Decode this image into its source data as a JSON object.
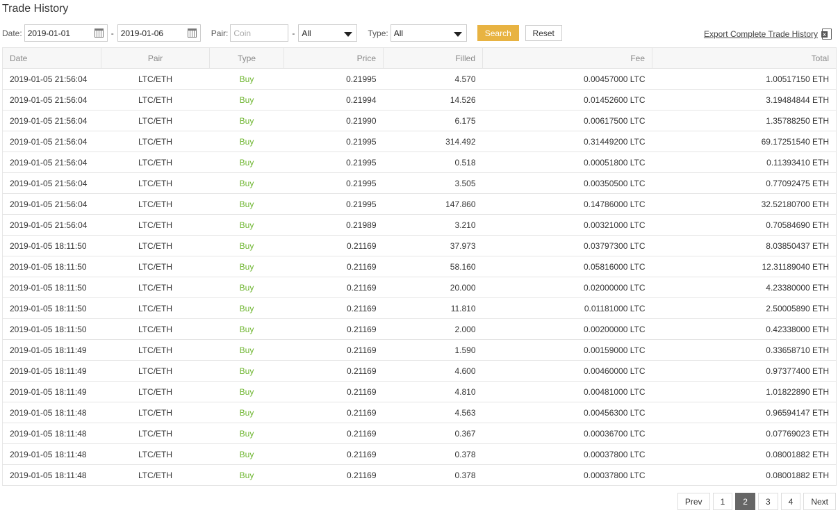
{
  "title": "Trade History",
  "filters": {
    "date_label": "Date:",
    "date_from": "2019-01-01",
    "date_to": "2019-01-06",
    "separator": "-",
    "pair_label": "Pair:",
    "pair_placeholder": "Coin",
    "pair_quote": "All",
    "type_label": "Type:",
    "type_value": "All",
    "search_label": "Search",
    "reset_label": "Reset"
  },
  "export_label": "Export Complete Trade History",
  "colors": {
    "accent": "#e8b342",
    "buy": "#6db52e",
    "active_page": "#666666"
  },
  "table": {
    "columns": [
      "Date",
      "Pair",
      "Type",
      "Price",
      "Filled",
      "Fee",
      "Total"
    ],
    "rows": [
      [
        "2019-01-05 21:56:04",
        "LTC/ETH",
        "Buy",
        "0.21995",
        "4.570",
        "0.00457000 LTC",
        "1.00517150 ETH"
      ],
      [
        "2019-01-05 21:56:04",
        "LTC/ETH",
        "Buy",
        "0.21994",
        "14.526",
        "0.01452600 LTC",
        "3.19484844 ETH"
      ],
      [
        "2019-01-05 21:56:04",
        "LTC/ETH",
        "Buy",
        "0.21990",
        "6.175",
        "0.00617500 LTC",
        "1.35788250 ETH"
      ],
      [
        "2019-01-05 21:56:04",
        "LTC/ETH",
        "Buy",
        "0.21995",
        "314.492",
        "0.31449200 LTC",
        "69.17251540 ETH"
      ],
      [
        "2019-01-05 21:56:04",
        "LTC/ETH",
        "Buy",
        "0.21995",
        "0.518",
        "0.00051800 LTC",
        "0.11393410 ETH"
      ],
      [
        "2019-01-05 21:56:04",
        "LTC/ETH",
        "Buy",
        "0.21995",
        "3.505",
        "0.00350500 LTC",
        "0.77092475 ETH"
      ],
      [
        "2019-01-05 21:56:04",
        "LTC/ETH",
        "Buy",
        "0.21995",
        "147.860",
        "0.14786000 LTC",
        "32.52180700 ETH"
      ],
      [
        "2019-01-05 21:56:04",
        "LTC/ETH",
        "Buy",
        "0.21989",
        "3.210",
        "0.00321000 LTC",
        "0.70584690 ETH"
      ],
      [
        "2019-01-05 18:11:50",
        "LTC/ETH",
        "Buy",
        "0.21169",
        "37.973",
        "0.03797300 LTC",
        "8.03850437 ETH"
      ],
      [
        "2019-01-05 18:11:50",
        "LTC/ETH",
        "Buy",
        "0.21169",
        "58.160",
        "0.05816000 LTC",
        "12.31189040 ETH"
      ],
      [
        "2019-01-05 18:11:50",
        "LTC/ETH",
        "Buy",
        "0.21169",
        "20.000",
        "0.02000000 LTC",
        "4.23380000 ETH"
      ],
      [
        "2019-01-05 18:11:50",
        "LTC/ETH",
        "Buy",
        "0.21169",
        "11.810",
        "0.01181000 LTC",
        "2.50005890 ETH"
      ],
      [
        "2019-01-05 18:11:50",
        "LTC/ETH",
        "Buy",
        "0.21169",
        "2.000",
        "0.00200000 LTC",
        "0.42338000 ETH"
      ],
      [
        "2019-01-05 18:11:49",
        "LTC/ETH",
        "Buy",
        "0.21169",
        "1.590",
        "0.00159000 LTC",
        "0.33658710 ETH"
      ],
      [
        "2019-01-05 18:11:49",
        "LTC/ETH",
        "Buy",
        "0.21169",
        "4.600",
        "0.00460000 LTC",
        "0.97377400 ETH"
      ],
      [
        "2019-01-05 18:11:49",
        "LTC/ETH",
        "Buy",
        "0.21169",
        "4.810",
        "0.00481000 LTC",
        "1.01822890 ETH"
      ],
      [
        "2019-01-05 18:11:48",
        "LTC/ETH",
        "Buy",
        "0.21169",
        "4.563",
        "0.00456300 LTC",
        "0.96594147 ETH"
      ],
      [
        "2019-01-05 18:11:48",
        "LTC/ETH",
        "Buy",
        "0.21169",
        "0.367",
        "0.00036700 LTC",
        "0.07769023 ETH"
      ],
      [
        "2019-01-05 18:11:48",
        "LTC/ETH",
        "Buy",
        "0.21169",
        "0.378",
        "0.00037800 LTC",
        "0.08001882 ETH"
      ],
      [
        "2019-01-05 18:11:48",
        "LTC/ETH",
        "Buy",
        "0.21169",
        "0.378",
        "0.00037800 LTC",
        "0.08001882 ETH"
      ]
    ]
  },
  "pagination": {
    "prev_label": "Prev",
    "pages": [
      "1",
      "2",
      "3",
      "4"
    ],
    "current_page": "2",
    "next_label": "Next"
  }
}
